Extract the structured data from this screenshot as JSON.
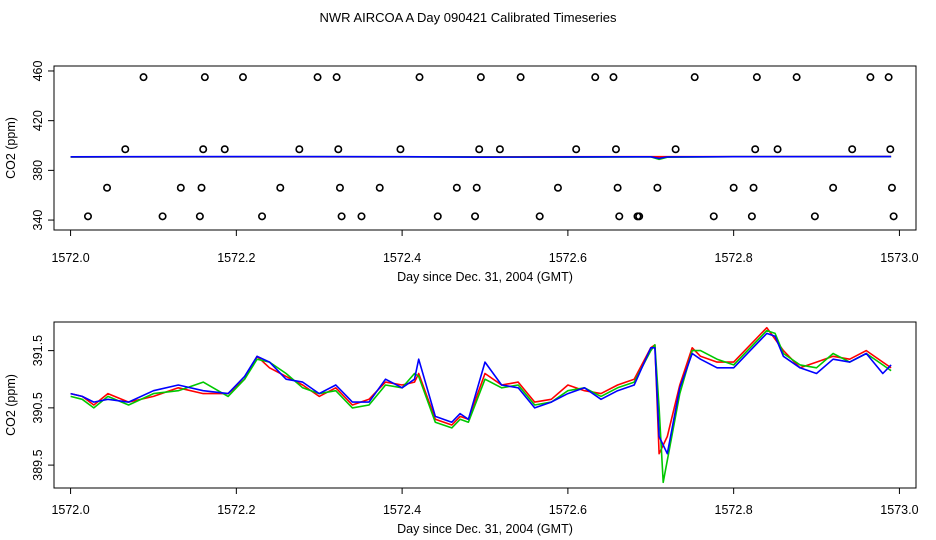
{
  "page": {
    "title": "NWR AIRCOA A  Day 090421  Calibrated Timeseries"
  },
  "chart_data": [
    {
      "type": "scatter",
      "xlabel": "Day since Dec. 31, 2004 (GMT)",
      "ylabel": "CO2 (ppm)",
      "xlim": [
        1571.98,
        1573.02
      ],
      "ylim": [
        332,
        464
      ],
      "xticks": [
        1572.0,
        1572.2,
        1572.4,
        1572.6,
        1572.8,
        1573.0
      ],
      "xtick_labels": [
        "1572.0",
        "1572.2",
        "1572.4",
        "1572.6",
        "1572.8",
        "1573.0"
      ],
      "yticks": [
        340,
        380,
        420,
        460
      ],
      "ytick_labels": [
        "340",
        "380",
        "420",
        "460"
      ],
      "grid": false,
      "points": [
        {
          "x": 1572.021,
          "y": 343
        },
        {
          "x": 1572.044,
          "y": 366
        },
        {
          "x": 1572.066,
          "y": 397
        },
        {
          "x": 1572.088,
          "y": 455
        },
        {
          "x": 1572.111,
          "y": 343
        },
        {
          "x": 1572.133,
          "y": 366
        },
        {
          "x": 1572.156,
          "y": 343
        },
        {
          "x": 1572.158,
          "y": 366
        },
        {
          "x": 1572.16,
          "y": 397
        },
        {
          "x": 1572.162,
          "y": 455
        },
        {
          "x": 1572.186,
          "y": 397
        },
        {
          "x": 1572.208,
          "y": 455
        },
        {
          "x": 1572.231,
          "y": 343
        },
        {
          "x": 1572.253,
          "y": 366
        },
        {
          "x": 1572.276,
          "y": 397
        },
        {
          "x": 1572.298,
          "y": 455
        },
        {
          "x": 1572.321,
          "y": 455
        },
        {
          "x": 1572.323,
          "y": 397
        },
        {
          "x": 1572.325,
          "y": 366
        },
        {
          "x": 1572.327,
          "y": 343
        },
        {
          "x": 1572.351,
          "y": 343
        },
        {
          "x": 1572.373,
          "y": 366
        },
        {
          "x": 1572.398,
          "y": 397
        },
        {
          "x": 1572.421,
          "y": 455
        },
        {
          "x": 1572.443,
          "y": 343
        },
        {
          "x": 1572.466,
          "y": 366
        },
        {
          "x": 1572.488,
          "y": 343
        },
        {
          "x": 1572.49,
          "y": 366
        },
        {
          "x": 1572.493,
          "y": 397
        },
        {
          "x": 1572.495,
          "y": 455
        },
        {
          "x": 1572.518,
          "y": 397
        },
        {
          "x": 1572.543,
          "y": 455
        },
        {
          "x": 1572.566,
          "y": 343
        },
        {
          "x": 1572.588,
          "y": 366
        },
        {
          "x": 1572.61,
          "y": 397
        },
        {
          "x": 1572.633,
          "y": 455
        },
        {
          "x": 1572.655,
          "y": 455
        },
        {
          "x": 1572.658,
          "y": 397
        },
        {
          "x": 1572.66,
          "y": 366
        },
        {
          "x": 1572.662,
          "y": 343
        },
        {
          "x": 1572.684,
          "y": 343
        },
        {
          "x": 1572.686,
          "y": 343
        },
        {
          "x": 1572.708,
          "y": 366
        },
        {
          "x": 1572.73,
          "y": 397
        },
        {
          "x": 1572.753,
          "y": 455
        },
        {
          "x": 1572.776,
          "y": 343
        },
        {
          "x": 1572.8,
          "y": 366
        },
        {
          "x": 1572.822,
          "y": 343
        },
        {
          "x": 1572.824,
          "y": 366
        },
        {
          "x": 1572.826,
          "y": 397
        },
        {
          "x": 1572.828,
          "y": 455
        },
        {
          "x": 1572.853,
          "y": 397
        },
        {
          "x": 1572.876,
          "y": 455
        },
        {
          "x": 1572.898,
          "y": 343
        },
        {
          "x": 1572.92,
          "y": 366
        },
        {
          "x": 1572.943,
          "y": 397
        },
        {
          "x": 1572.965,
          "y": 455
        },
        {
          "x": 1572.987,
          "y": 455
        },
        {
          "x": 1572.989,
          "y": 397
        },
        {
          "x": 1572.991,
          "y": 366
        },
        {
          "x": 1572.993,
          "y": 343
        }
      ],
      "series": [
        {
          "color": "#ff0000",
          "x": [
            1572.0,
            1572.99
          ],
          "y": [
            390.8,
            391.1
          ]
        },
        {
          "color": "#00c800",
          "x": [
            1572.0,
            1572.3,
            1572.6,
            1572.7,
            1572.71,
            1572.72,
            1572.8,
            1572.99
          ],
          "y": [
            390.8,
            391.0,
            390.6,
            390.8,
            388.9,
            390.6,
            391.0,
            391.0
          ]
        },
        {
          "color": "#0000ff",
          "x": [
            1572.0,
            1572.2,
            1572.4,
            1572.5,
            1572.6,
            1572.7,
            1572.71,
            1572.72,
            1572.8,
            1572.99
          ],
          "y": [
            390.9,
            391.1,
            391.0,
            390.6,
            390.8,
            390.9,
            389.6,
            390.8,
            391.0,
            391.1
          ]
        }
      ]
    },
    {
      "type": "line",
      "xlabel": "Day since Dec. 31, 2004 (GMT)",
      "ylabel": "CO2 (ppm)",
      "xlim": [
        1571.98,
        1573.02
      ],
      "ylim": [
        389.1,
        392.0
      ],
      "xticks": [
        1572.0,
        1572.2,
        1572.4,
        1572.6,
        1572.8,
        1573.0
      ],
      "xtick_labels": [
        "1572.0",
        "1572.2",
        "1572.4",
        "1572.6",
        "1572.8",
        "1573.0"
      ],
      "yticks": [
        389.5,
        390.5,
        391.5
      ],
      "ytick_labels": [
        "389.5",
        "390.5",
        "391.5"
      ],
      "grid": false,
      "series": [
        {
          "color": "#ff0000",
          "x": [
            1572.0,
            1572.014,
            1572.028,
            1572.045,
            1572.07,
            1572.1,
            1572.13,
            1572.16,
            1572.19,
            1572.21,
            1572.225,
            1572.24,
            1572.26,
            1572.28,
            1572.3,
            1572.32,
            1572.34,
            1572.36,
            1572.38,
            1572.4,
            1572.415,
            1572.42,
            1572.44,
            1572.46,
            1572.47,
            1572.48,
            1572.5,
            1572.52,
            1572.54,
            1572.56,
            1572.58,
            1572.6,
            1572.62,
            1572.64,
            1572.66,
            1572.68,
            1572.7,
            1572.705,
            1572.71,
            1572.72,
            1572.735,
            1572.75,
            1572.76,
            1572.78,
            1572.8,
            1572.82,
            1572.84,
            1572.85,
            1572.86,
            1572.88,
            1572.9,
            1572.92,
            1572.94,
            1572.96,
            1572.98,
            1572.99
          ],
          "y": [
            390.75,
            390.7,
            390.55,
            390.75,
            390.6,
            390.7,
            390.85,
            390.75,
            390.75,
            391.0,
            391.4,
            391.2,
            391.05,
            390.9,
            390.7,
            390.85,
            390.55,
            390.65,
            390.95,
            390.9,
            390.95,
            391.1,
            390.3,
            390.2,
            390.35,
            390.3,
            391.1,
            390.9,
            390.95,
            390.6,
            390.65,
            390.9,
            390.8,
            390.75,
            390.9,
            391.0,
            391.55,
            391.6,
            389.7,
            390.0,
            390.9,
            391.55,
            391.4,
            391.3,
            391.3,
            391.6,
            391.9,
            391.7,
            391.5,
            391.2,
            391.3,
            391.4,
            391.35,
            391.5,
            391.3,
            391.2
          ]
        },
        {
          "color": "#00c800",
          "x": [
            1572.0,
            1572.014,
            1572.028,
            1572.045,
            1572.07,
            1572.1,
            1572.13,
            1572.16,
            1572.19,
            1572.21,
            1572.225,
            1572.24,
            1572.26,
            1572.28,
            1572.3,
            1572.32,
            1572.34,
            1572.36,
            1572.38,
            1572.4,
            1572.415,
            1572.42,
            1572.44,
            1572.46,
            1572.47,
            1572.48,
            1572.5,
            1572.52,
            1572.54,
            1572.56,
            1572.58,
            1572.6,
            1572.62,
            1572.64,
            1572.66,
            1572.68,
            1572.7,
            1572.705,
            1572.71,
            1572.715,
            1572.735,
            1572.75,
            1572.76,
            1572.78,
            1572.8,
            1572.82,
            1572.84,
            1572.85,
            1572.86,
            1572.88,
            1572.9,
            1572.92,
            1572.94,
            1572.96,
            1572.98,
            1572.99
          ],
          "y": [
            390.7,
            390.65,
            390.5,
            390.7,
            390.55,
            390.75,
            390.8,
            390.95,
            390.7,
            391.0,
            391.35,
            391.3,
            391.1,
            390.85,
            390.75,
            390.8,
            390.5,
            390.55,
            390.9,
            390.85,
            391.1,
            391.05,
            390.25,
            390.15,
            390.3,
            390.25,
            391.0,
            390.85,
            390.9,
            390.55,
            390.6,
            390.8,
            390.85,
            390.7,
            390.85,
            390.95,
            391.5,
            391.6,
            390.5,
            389.2,
            390.75,
            391.5,
            391.5,
            391.35,
            391.25,
            391.55,
            391.85,
            391.8,
            391.45,
            391.25,
            391.2,
            391.45,
            391.3,
            391.45,
            391.25,
            391.15
          ]
        },
        {
          "color": "#0000ff",
          "x": [
            1572.0,
            1572.014,
            1572.028,
            1572.045,
            1572.07,
            1572.1,
            1572.13,
            1572.16,
            1572.19,
            1572.21,
            1572.225,
            1572.24,
            1572.26,
            1572.28,
            1572.3,
            1572.32,
            1572.34,
            1572.36,
            1572.38,
            1572.4,
            1572.415,
            1572.42,
            1572.44,
            1572.46,
            1572.47,
            1572.48,
            1572.5,
            1572.52,
            1572.54,
            1572.56,
            1572.58,
            1572.6,
            1572.62,
            1572.64,
            1572.66,
            1572.68,
            1572.7,
            1572.705,
            1572.71,
            1572.72,
            1572.735,
            1572.75,
            1572.76,
            1572.78,
            1572.8,
            1572.82,
            1572.84,
            1572.85,
            1572.86,
            1572.88,
            1572.9,
            1572.92,
            1572.94,
            1572.96,
            1572.98,
            1572.99
          ],
          "y": [
            390.75,
            390.7,
            390.6,
            390.65,
            390.6,
            390.8,
            390.9,
            390.8,
            390.75,
            391.05,
            391.4,
            391.3,
            391.0,
            390.95,
            390.75,
            390.9,
            390.6,
            390.6,
            391.0,
            390.85,
            391.0,
            391.35,
            390.35,
            390.25,
            390.4,
            390.3,
            391.3,
            390.9,
            390.85,
            390.5,
            390.6,
            390.75,
            390.85,
            390.65,
            390.8,
            390.9,
            391.55,
            391.55,
            390.0,
            389.7,
            390.85,
            391.45,
            391.35,
            391.2,
            391.2,
            391.5,
            391.8,
            391.75,
            391.4,
            391.2,
            391.1,
            391.35,
            391.3,
            391.45,
            391.1,
            391.25
          ]
        }
      ]
    }
  ]
}
